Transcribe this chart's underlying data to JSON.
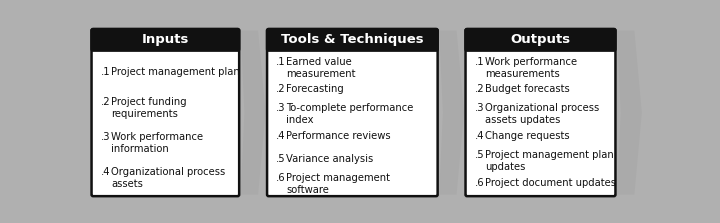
{
  "boxes": [
    {
      "title": "Inputs",
      "items": [
        [
          ".1",
          "Project management plan"
        ],
        [
          ".2",
          "Project funding\nrequirements"
        ],
        [
          ".3",
          "Work performance\ninformation"
        ],
        [
          ".4",
          "Organizational process\nassets"
        ]
      ]
    },
    {
      "title": "Tools & Techniques",
      "items": [
        [
          ".1",
          "Earned value\nmeasurement"
        ],
        [
          ".2",
          "Forecasting"
        ],
        [
          ".3",
          "To-complete performance\nindex"
        ],
        [
          ".4",
          "Performance reviews"
        ],
        [
          ".5",
          "Variance analysis"
        ],
        [
          ".6",
          "Project management\nsoftware"
        ]
      ]
    },
    {
      "title": "Outputs",
      "items": [
        [
          ".1",
          "Work performance\nmeasurements"
        ],
        [
          ".2",
          "Budget forecasts"
        ],
        [
          ".3",
          "Organizational process\nassets updates"
        ],
        [
          ".4",
          "Change requests"
        ],
        [
          ".5",
          "Project management plan\nupdates"
        ],
        [
          ".6",
          "Project document updates"
        ]
      ]
    }
  ],
  "header_bg": "#111111",
  "header_text_color": "#ffffff",
  "box_bg": "#ffffff",
  "box_border": "#111111",
  "body_text_color": "#111111",
  "arrow_color": "#aaaaaa",
  "bg_color": "#b0b0b0",
  "title_fontsize": 9.5,
  "body_fontsize": 7.2,
  "num_fontsize": 7.2
}
